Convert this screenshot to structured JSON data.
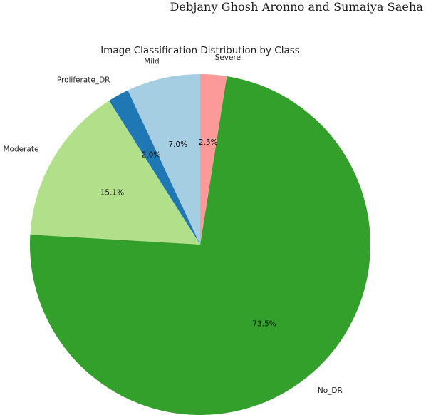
{
  "header": {
    "running_head": "Debjany Ghosh Aronno and Sumaiya Saeha"
  },
  "chart_data": {
    "type": "pie",
    "title": "Image Classification Distribution by Class",
    "start_angle_deg": 90,
    "direction": "counterclockwise",
    "slices": [
      {
        "label": "Mild",
        "value": 7.0,
        "pct_label": "7.0%",
        "color": "#a6cee3"
      },
      {
        "label": "Proliferate_DR",
        "value": 2.0,
        "pct_label": "2.0%",
        "color": "#1f78b4"
      },
      {
        "label": "Moderate",
        "value": 15.1,
        "pct_label": "15.1%",
        "color": "#b2df8a"
      },
      {
        "label": "No_DR",
        "value": 73.5,
        "pct_label": "73.5%",
        "color": "#33a02c"
      },
      {
        "label": "Severe",
        "value": 2.5,
        "pct_label": "2.5%",
        "color": "#fb9a99"
      }
    ]
  }
}
